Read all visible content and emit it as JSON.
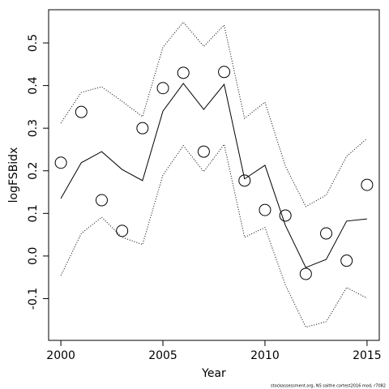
{
  "chart_data": {
    "type": "line",
    "xlabel": "Year",
    "ylabel": "logFSBidx",
    "footnote": "stockassessment.org, NS saithe cortest2016 mod, r7082",
    "x": [
      2000,
      2001,
      2002,
      2003,
      2004,
      2005,
      2006,
      2007,
      2008,
      2009,
      2010,
      2011,
      2012,
      2013,
      2014,
      2015
    ],
    "series": [
      {
        "color": "#000000",
        "style": "points",
        "values": [
          0.219,
          0.338,
          0.131,
          0.059,
          0.3,
          0.394,
          0.43,
          0.245,
          0.432,
          0.177,
          0.108,
          0.095,
          -0.042,
          0.053,
          -0.011,
          0.167
        ]
      },
      {
        "color": "#000000",
        "style": "solid",
        "values": [
          0.135,
          0.219,
          0.245,
          0.203,
          0.177,
          0.34,
          0.405,
          0.344,
          0.403,
          0.181,
          0.213,
          0.072,
          -0.027,
          -0.008,
          0.082,
          0.087
        ]
      },
      {
        "color": "#000000",
        "style": "dotted",
        "values": [
          0.312,
          0.384,
          0.397,
          0.363,
          0.327,
          0.49,
          0.549,
          0.492,
          0.542,
          0.323,
          0.361,
          0.211,
          0.116,
          0.143,
          0.234,
          0.276
        ]
      },
      {
        "color": "#000000",
        "style": "dotted",
        "values": [
          -0.046,
          0.053,
          0.091,
          0.044,
          0.027,
          0.19,
          0.259,
          0.198,
          0.262,
          0.044,
          0.067,
          -0.068,
          -0.167,
          -0.154,
          -0.074,
          -0.099
        ]
      }
    ],
    "xlim": [
      1999.4,
      2015.6
    ],
    "xticks": [
      2000,
      2005,
      2010,
      2015
    ],
    "ylim": [
      -0.198,
      0.578
    ],
    "yticks": [
      -0.1,
      {
        "value": 0,
        "label": "0.0"
      },
      0.1,
      0.2,
      0.3,
      0.4,
      0.5
    ]
  }
}
